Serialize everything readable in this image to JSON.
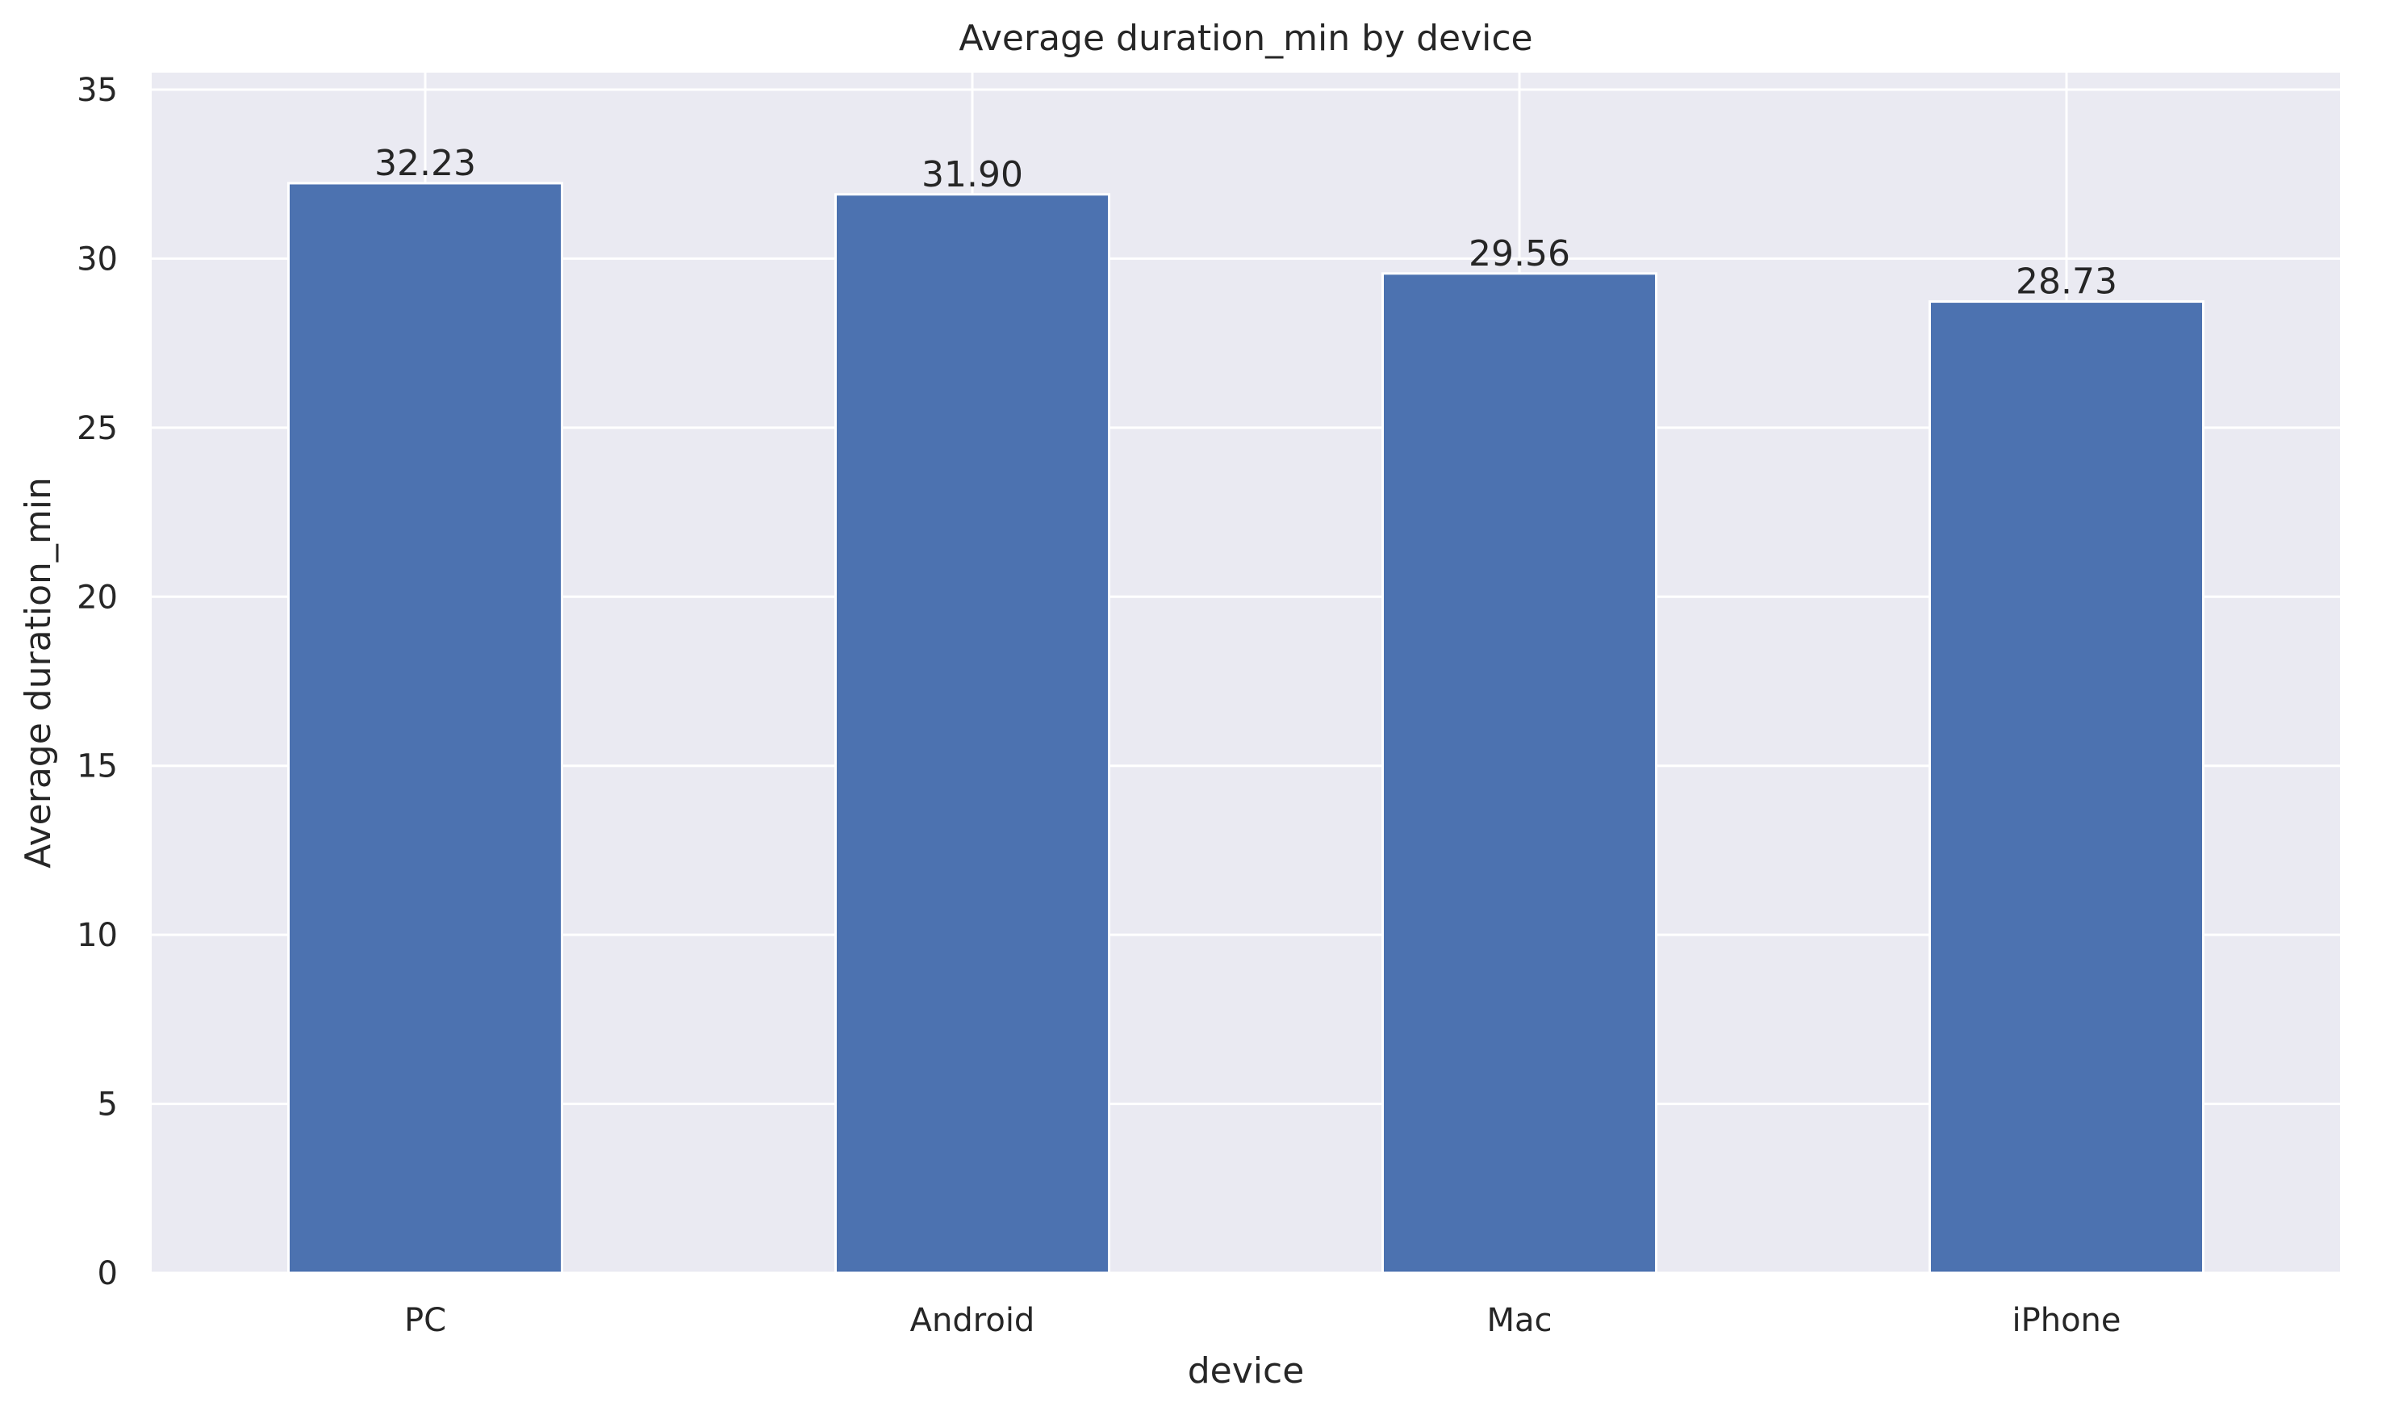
{
  "chart_data": {
    "type": "bar",
    "title": "Average duration_min by device",
    "xlabel": "device",
    "ylabel": "Average duration_min",
    "categories": [
      "PC",
      "Android",
      "Mac",
      "iPhone"
    ],
    "values": [
      32.23,
      31.9,
      29.56,
      28.73
    ],
    "value_labels": [
      "32.23",
      "31.90",
      "29.56",
      "28.73"
    ],
    "ylim": [
      0,
      35.5
    ],
    "yticks": [
      0,
      5,
      10,
      15,
      20,
      25,
      30,
      35
    ],
    "grid": true,
    "legend": "none",
    "colors": {
      "bar": "#4c72b0",
      "plot_background": "#eaeaf2",
      "grid": "#ffffff",
      "text": "#262626"
    }
  }
}
